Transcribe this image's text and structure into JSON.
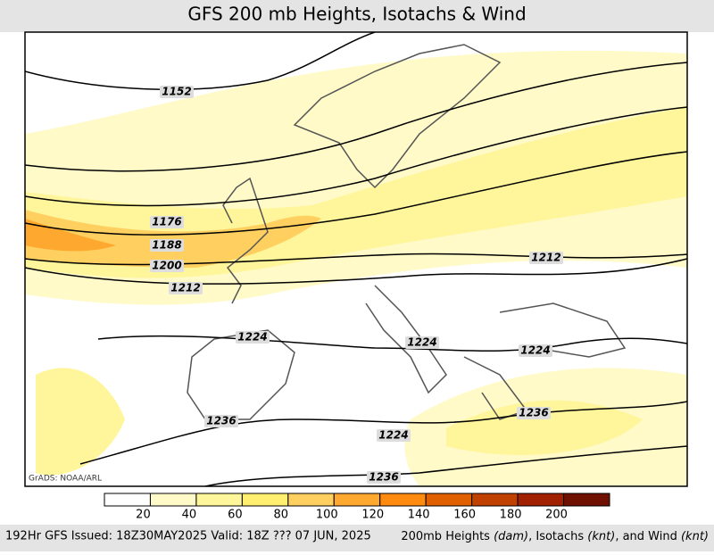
{
  "header": {
    "title": "GFS 200 mb Heights, Isotachs & Wind"
  },
  "map": {
    "credit": "GrADS: NOAA/ARL",
    "contour_labels": [
      1152,
      1176,
      1188,
      1200,
      1212,
      1212,
      1224,
      1224,
      1224,
      1224,
      1236,
      1236,
      1236
    ]
  },
  "colorbar": {
    "ticks": [
      20,
      40,
      60,
      80,
      100,
      120,
      140,
      160,
      180,
      200
    ],
    "colors": [
      "#ffffff",
      "#fffac8",
      "#fff59a",
      "#ffee70",
      "#ffd060",
      "#ffa830",
      "#ff8a10",
      "#e06000",
      "#c04000",
      "#a02000",
      "#701000"
    ]
  },
  "footer": {
    "left": "192Hr GFS Issued: 18Z30MAY2025 Valid: 18Z ??? 07 JUN, 2025",
    "right": [
      "200mb Heights ",
      "(dam)",
      ", Isotachs ",
      "(knt)",
      ", and Wind ",
      "(knt)"
    ]
  }
}
